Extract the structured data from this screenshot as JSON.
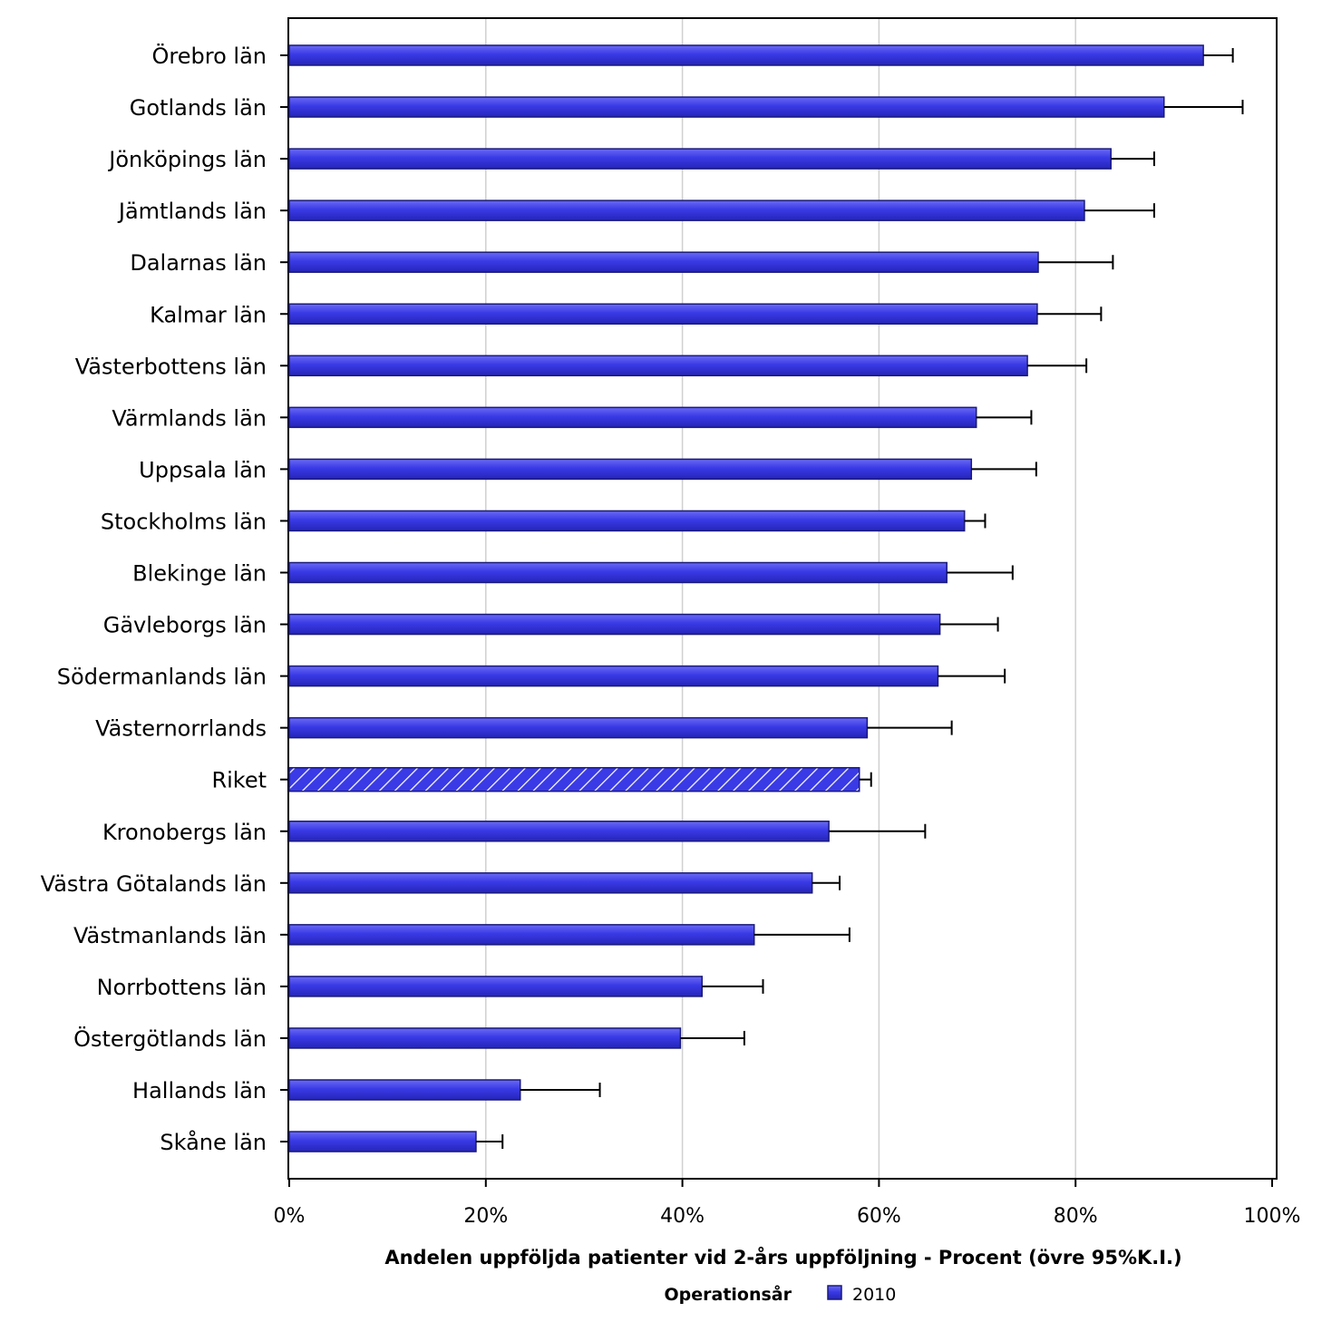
{
  "chart_data": {
    "type": "bar",
    "orientation": "horizontal",
    "xlabel": "Andelen uppföljda patienter vid 2-års uppföljning - Procent (övre 95%K.I.)",
    "xlim": [
      0,
      100
    ],
    "xticks": [
      0,
      20,
      40,
      60,
      80,
      100
    ],
    "xtick_labels": [
      "0%",
      "20%",
      "40%",
      "60%",
      "80%",
      "100%"
    ],
    "grid": "vertical",
    "categories": [
      "Örebro län",
      "Gotlands län",
      "Jönköpings län",
      "Jämtlands län",
      "Dalarnas län",
      "Kalmar län",
      "Västerbottens län",
      "Värmlands län",
      "Uppsala län",
      "Stockholms län",
      "Blekinge län",
      "Gävleborgs län",
      "Södermanlands län",
      "Västernorrlands",
      "Riket",
      "Kronobergs län",
      "Västra Götalands län",
      "Västmanlands län",
      "Norrbottens län",
      "Östergötlands län",
      "Hallands län",
      "Skåne län"
    ],
    "series": [
      {
        "name": "2010",
        "values": [
          93.0,
          89.0,
          83.6,
          80.9,
          76.2,
          76.1,
          75.1,
          69.9,
          69.4,
          68.7,
          66.9,
          66.2,
          66.0,
          58.8,
          58.0,
          54.9,
          53.2,
          47.3,
          42.0,
          39.8,
          23.5,
          19.0
        ],
        "upper_ci": [
          96.0,
          97.0,
          88.0,
          88.0,
          83.8,
          82.6,
          81.1,
          75.5,
          76.0,
          70.8,
          73.6,
          72.1,
          72.8,
          67.4,
          59.2,
          64.7,
          56.0,
          57.0,
          48.2,
          46.3,
          31.6,
          21.7
        ]
      }
    ],
    "highlight_category": "Riket",
    "legend": {
      "title": "Operationsår",
      "placement": "bottom",
      "entries": [
        "2010"
      ]
    },
    "colors": {
      "bar": "#3a3ae6",
      "bar_edge": "#1a1a7a",
      "highlight_stripe": "#ffffff",
      "grid": "#d0d0d0",
      "error_bar": "#000000"
    }
  }
}
